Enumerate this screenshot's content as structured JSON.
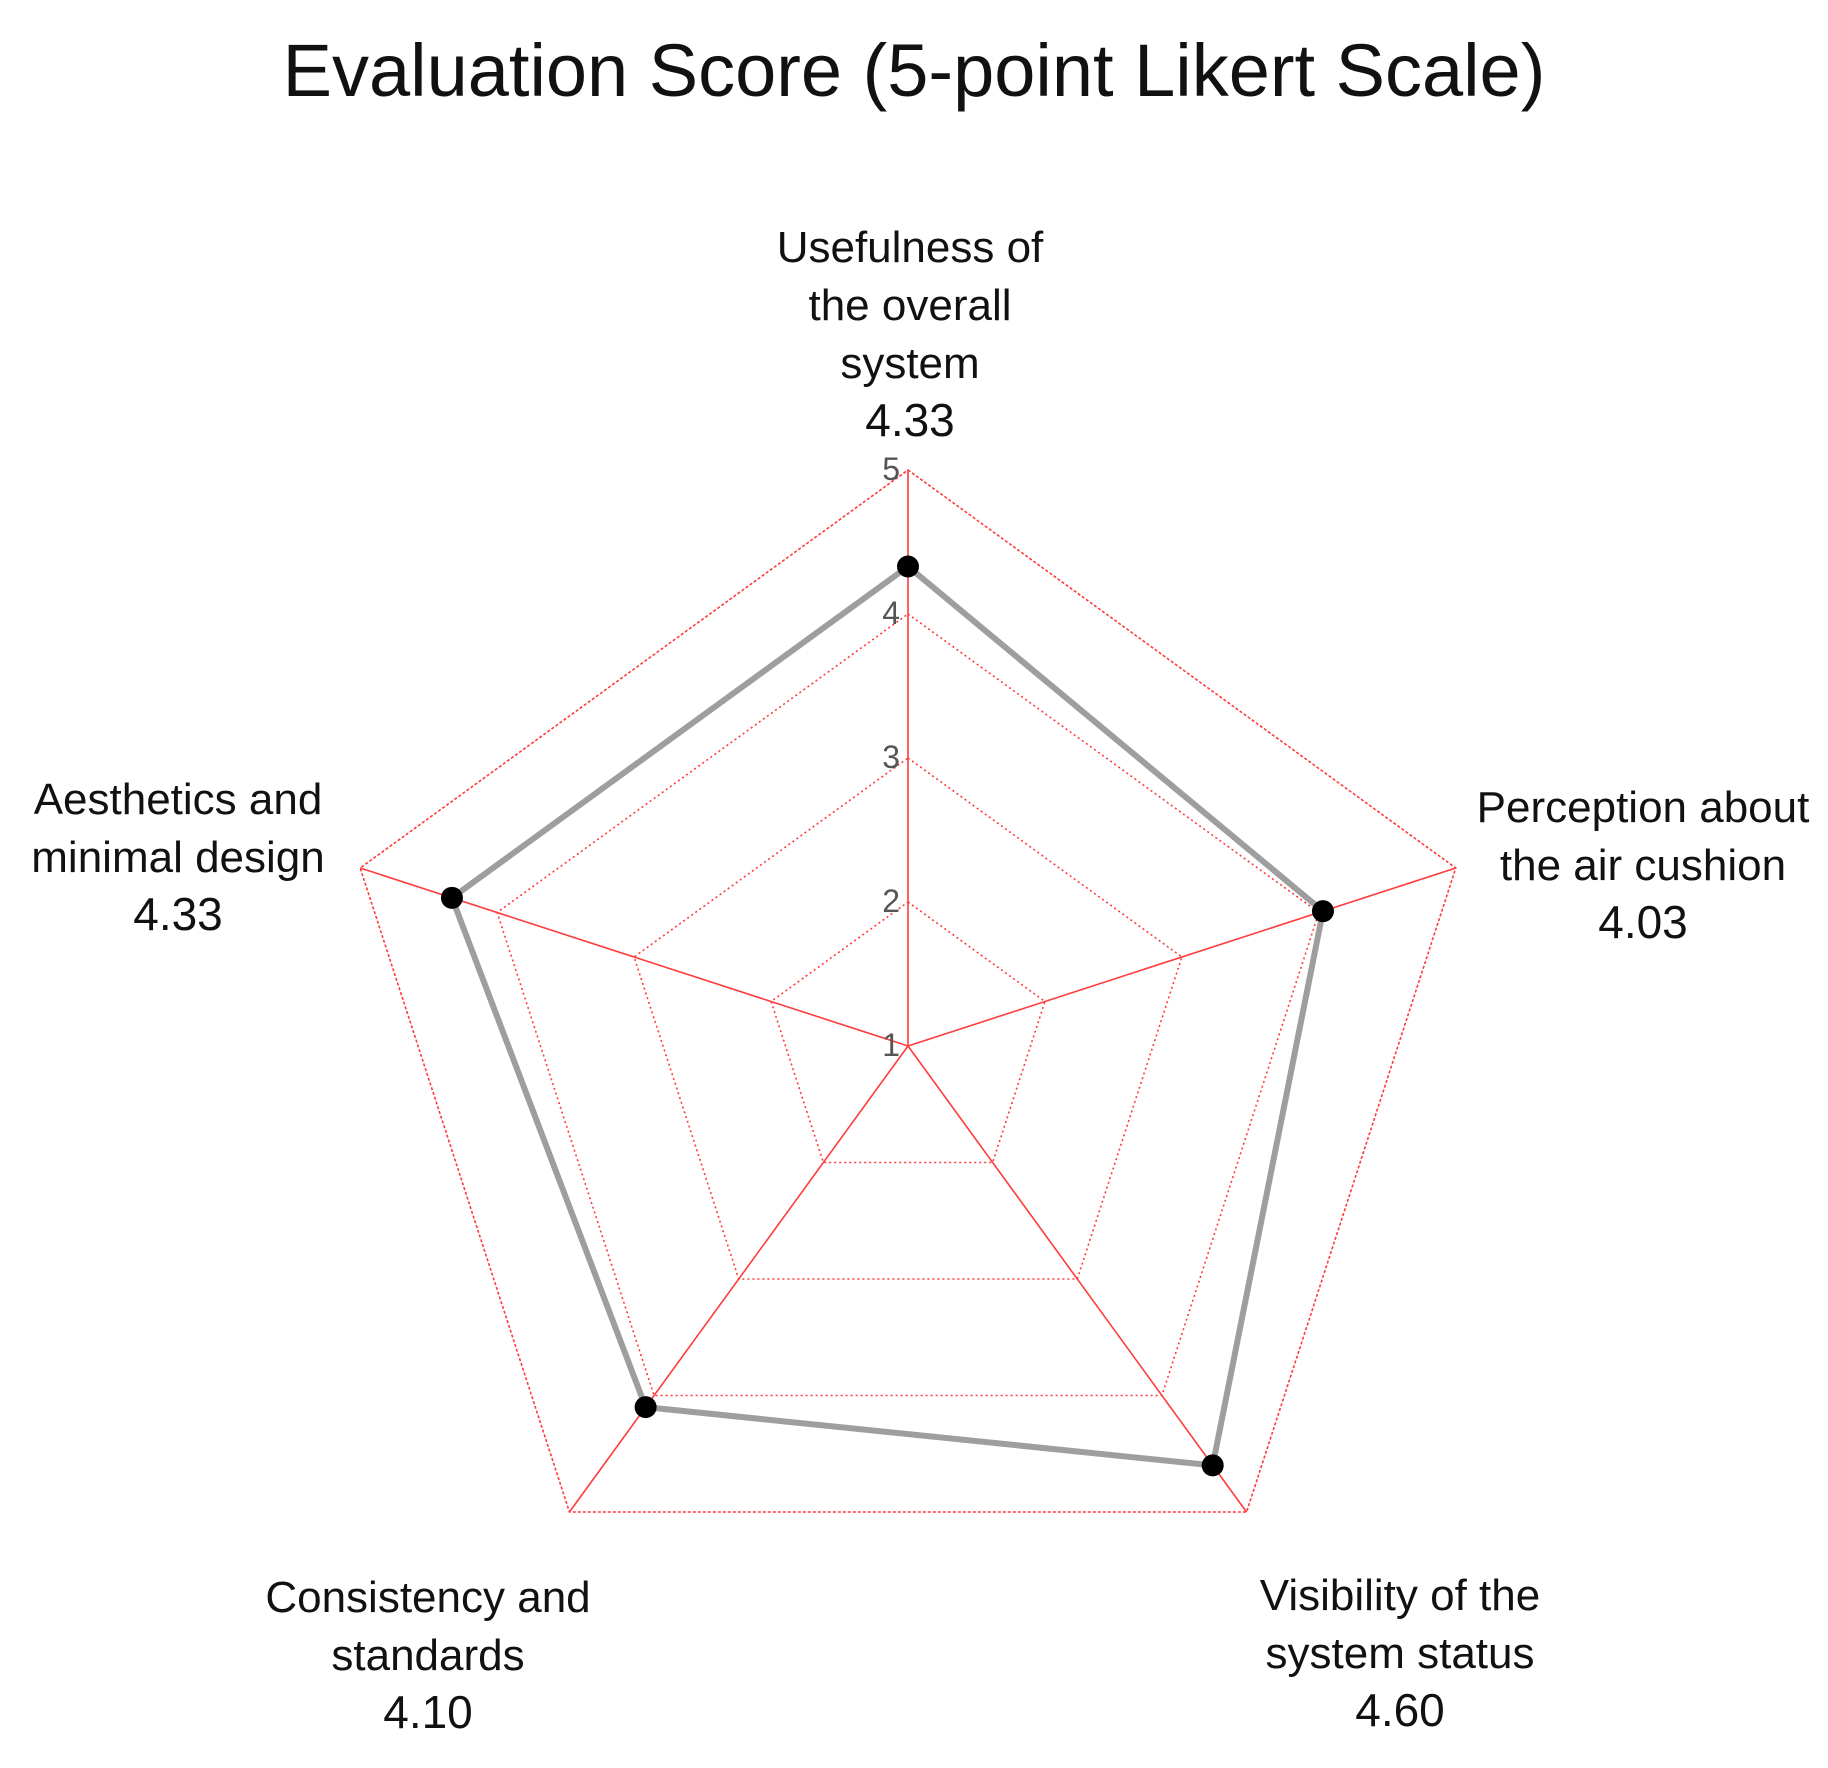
{
  "chart_data": {
    "type": "radar",
    "title": "Evaluation Score (5-point Likert Scale)",
    "scale": {
      "min": 1,
      "max": 5,
      "ticks": [
        "1",
        "2",
        "3",
        "4",
        "5"
      ]
    },
    "axes": [
      {
        "label": [
          "Usefulness of",
          "the overall",
          "system"
        ],
        "value_text": "4.33",
        "value": 4.33
      },
      {
        "label": [
          "Perception about",
          "the air cushion"
        ],
        "value_text": "4.03",
        "value": 4.03
      },
      {
        "label": [
          "Visibility of the",
          "system status"
        ],
        "value_text": "4.60",
        "value": 4.6
      },
      {
        "label": [
          "Consistency and",
          "standards"
        ],
        "value_text": "4.10",
        "value": 4.1
      },
      {
        "label": [
          "Aesthetics and",
          "minimal design"
        ],
        "value_text": "4.33",
        "value": 4.33
      }
    ],
    "grid": true,
    "colors": {
      "grid": "#ff3b3b",
      "series_line": "#9e9e9e",
      "marker": "#000000"
    }
  }
}
